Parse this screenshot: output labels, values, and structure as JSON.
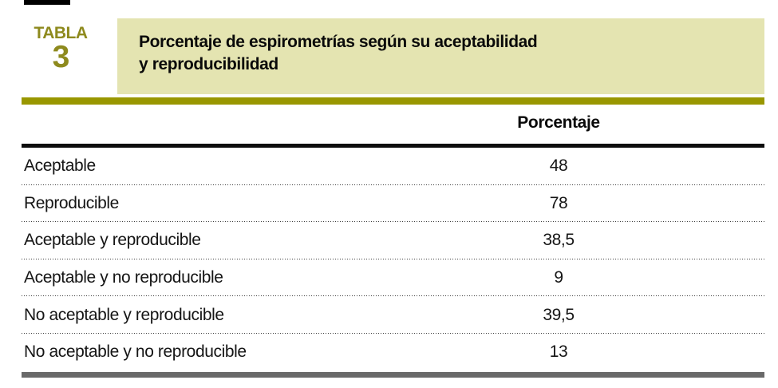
{
  "badge": {
    "word": "TABLA",
    "number": "3"
  },
  "title": {
    "line1": "Porcentaje de espirometrías según su aceptabilidad",
    "line2": "y reproducibilidad"
  },
  "table": {
    "value_column_header": "Porcentaje",
    "rows": [
      {
        "label": "Aceptable",
        "value": "48"
      },
      {
        "label": "Reproducible",
        "value": "78"
      },
      {
        "label": "Aceptable y reproducible",
        "value": "38,5"
      },
      {
        "label": "Aceptable y no reproducible",
        "value": "9"
      },
      {
        "label": "No aceptable y reproducible",
        "value": "39,5"
      },
      {
        "label": "No aceptable y no reproducible",
        "value": "13"
      }
    ]
  },
  "chart_data": {
    "type": "table",
    "title": "Porcentaje de espirometrías según su aceptabilidad y reproducibilidad",
    "columns": [
      "",
      "Porcentaje"
    ],
    "categories": [
      "Aceptable",
      "Reproducible",
      "Aceptable y reproducible",
      "Aceptable y no reproducible",
      "No aceptable y reproducible",
      "No aceptable y no reproducible"
    ],
    "values": [
      48,
      78,
      38.5,
      9,
      39.5,
      13
    ]
  },
  "colors": {
    "badge_olive": "#8e8a1e",
    "rule_olive": "#999700",
    "title_box_bg": "#e4e4b1",
    "header_rule_black": "#0d0d0d",
    "bottom_bar_gray": "#696969",
    "row_divider": "#3c3c3c",
    "text": "#151515"
  }
}
